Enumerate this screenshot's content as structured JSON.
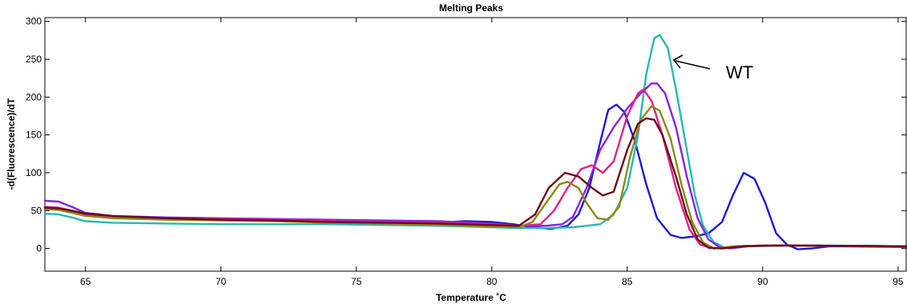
{
  "chart_data": {
    "type": "line",
    "title": "Melting Peaks",
    "xlabel": "Temperature ˚C",
    "ylabel": "-d(Fluorescence)/dT",
    "xlim": [
      63.5,
      95.3
    ],
    "ylim": [
      -30,
      305
    ],
    "xticks": [
      65,
      70,
      75,
      80,
      85,
      90,
      95
    ],
    "yticks": [
      0,
      50,
      100,
      150,
      200,
      250,
      300
    ],
    "grid": false,
    "annotations": [
      {
        "text": "WT",
        "points_to": {
          "x": 86.2,
          "y": 260
        }
      }
    ],
    "series": [
      {
        "color": "#1a1ad6",
        "points": [
          [
            63.5,
            53
          ],
          [
            64,
            52
          ],
          [
            64.5,
            48
          ],
          [
            65,
            44
          ],
          [
            66,
            42
          ],
          [
            68,
            40
          ],
          [
            70,
            38
          ],
          [
            72,
            37
          ],
          [
            74,
            36
          ],
          [
            76,
            35
          ],
          [
            78,
            34
          ],
          [
            79,
            36
          ],
          [
            80,
            35
          ],
          [
            80.8,
            32
          ],
          [
            81.5,
            28
          ],
          [
            82.2,
            26
          ],
          [
            82.8,
            30
          ],
          [
            83.2,
            45
          ],
          [
            83.6,
            80
          ],
          [
            84,
            140
          ],
          [
            84.3,
            183
          ],
          [
            84.6,
            190
          ],
          [
            84.9,
            180
          ],
          [
            85.3,
            140
          ],
          [
            85.7,
            85
          ],
          [
            86.1,
            40
          ],
          [
            86.6,
            18
          ],
          [
            87,
            14
          ],
          [
            87.5,
            16
          ],
          [
            88,
            20
          ],
          [
            88.5,
            35
          ],
          [
            88.9,
            70
          ],
          [
            89.3,
            100
          ],
          [
            89.7,
            92
          ],
          [
            90.1,
            60
          ],
          [
            90.5,
            20
          ],
          [
            90.9,
            5
          ],
          [
            91.3,
            -1
          ],
          [
            91.8,
            0
          ],
          [
            92.5,
            3
          ],
          [
            95.3,
            2
          ]
        ]
      },
      {
        "color": "#26b8b8",
        "points": [
          [
            63.5,
            46
          ],
          [
            64,
            45
          ],
          [
            64.5,
            41
          ],
          [
            65,
            36
          ],
          [
            66,
            34
          ],
          [
            68,
            33
          ],
          [
            70,
            32
          ],
          [
            72,
            32
          ],
          [
            74,
            32
          ],
          [
            76,
            31
          ],
          [
            78,
            30
          ],
          [
            80,
            28
          ],
          [
            81,
            27
          ],
          [
            82,
            27
          ],
          [
            83,
            28
          ],
          [
            84,
            32
          ],
          [
            84.5,
            45
          ],
          [
            85,
            80
          ],
          [
            85.4,
            150
          ],
          [
            85.7,
            230
          ],
          [
            86,
            278
          ],
          [
            86.2,
            282
          ],
          [
            86.5,
            265
          ],
          [
            86.8,
            210
          ],
          [
            87.2,
            130
          ],
          [
            87.5,
            70
          ],
          [
            87.8,
            30
          ],
          [
            88.2,
            8
          ],
          [
            88.6,
            1
          ],
          [
            89,
            2
          ],
          [
            90,
            4
          ],
          [
            92,
            4
          ],
          [
            95.3,
            3
          ]
        ]
      },
      {
        "color": "#8822dd",
        "points": [
          [
            63.5,
            63
          ],
          [
            64,
            62
          ],
          [
            64.5,
            55
          ],
          [
            65,
            47
          ],
          [
            66,
            43
          ],
          [
            68,
            41
          ],
          [
            70,
            40
          ],
          [
            72,
            39
          ],
          [
            74,
            38
          ],
          [
            76,
            37
          ],
          [
            78,
            36
          ],
          [
            80,
            33
          ],
          [
            81,
            30
          ],
          [
            82,
            30
          ],
          [
            82.6,
            32
          ],
          [
            83,
            42
          ],
          [
            83.5,
            80
          ],
          [
            84,
            130
          ],
          [
            84.5,
            160
          ],
          [
            85,
            185
          ],
          [
            85.5,
            205
          ],
          [
            85.9,
            218
          ],
          [
            86.1,
            218
          ],
          [
            86.4,
            205
          ],
          [
            86.8,
            160
          ],
          [
            87.2,
            95
          ],
          [
            87.6,
            40
          ],
          [
            88,
            12
          ],
          [
            88.4,
            2
          ],
          [
            88.8,
            0
          ],
          [
            89.5,
            3
          ],
          [
            91,
            4
          ],
          [
            95.3,
            3
          ]
        ]
      },
      {
        "color": "#e0208a",
        "points": [
          [
            63.5,
            55
          ],
          [
            64,
            54
          ],
          [
            64.5,
            50
          ],
          [
            65,
            45
          ],
          [
            66,
            42
          ],
          [
            68,
            40
          ],
          [
            70,
            39
          ],
          [
            72,
            38
          ],
          [
            74,
            36
          ],
          [
            76,
            35
          ],
          [
            78,
            34
          ],
          [
            80,
            32
          ],
          [
            81,
            30
          ],
          [
            81.8,
            32
          ],
          [
            82.3,
            50
          ],
          [
            82.8,
            80
          ],
          [
            83.3,
            105
          ],
          [
            83.7,
            110
          ],
          [
            84.1,
            100
          ],
          [
            84.5,
            115
          ],
          [
            85,
            175
          ],
          [
            85.4,
            205
          ],
          [
            85.6,
            210
          ],
          [
            85.9,
            195
          ],
          [
            86.3,
            150
          ],
          [
            86.8,
            80
          ],
          [
            87.3,
            25
          ],
          [
            87.7,
            5
          ],
          [
            88.2,
            0
          ],
          [
            89,
            3
          ],
          [
            90,
            4
          ],
          [
            95.3,
            3
          ]
        ]
      },
      {
        "color": "#8a8a16",
        "points": [
          [
            63.5,
            52
          ],
          [
            64,
            51
          ],
          [
            64.5,
            47
          ],
          [
            65,
            43
          ],
          [
            66,
            40
          ],
          [
            68,
            38
          ],
          [
            70,
            37
          ],
          [
            72,
            36
          ],
          [
            74,
            34
          ],
          [
            76,
            33
          ],
          [
            78,
            31
          ],
          [
            80,
            29
          ],
          [
            81,
            28
          ],
          [
            81.5,
            35
          ],
          [
            82,
            60
          ],
          [
            82.5,
            85
          ],
          [
            82.8,
            88
          ],
          [
            83.2,
            80
          ],
          [
            83.5,
            60
          ],
          [
            83.9,
            40
          ],
          [
            84.3,
            38
          ],
          [
            84.7,
            55
          ],
          [
            85.1,
            120
          ],
          [
            85.5,
            170
          ],
          [
            85.9,
            188
          ],
          [
            86.2,
            182
          ],
          [
            86.6,
            145
          ],
          [
            87,
            85
          ],
          [
            87.4,
            35
          ],
          [
            87.8,
            8
          ],
          [
            88.2,
            0
          ],
          [
            89,
            3
          ],
          [
            90,
            4
          ],
          [
            95.3,
            3
          ]
        ]
      },
      {
        "color": "#6b0a1a",
        "points": [
          [
            63.5,
            54
          ],
          [
            64,
            53
          ],
          [
            64.5,
            50
          ],
          [
            65,
            46
          ],
          [
            66,
            43
          ],
          [
            68,
            40
          ],
          [
            70,
            38
          ],
          [
            72,
            37
          ],
          [
            74,
            35
          ],
          [
            76,
            34
          ],
          [
            78,
            33
          ],
          [
            80,
            31
          ],
          [
            81,
            30
          ],
          [
            81.6,
            45
          ],
          [
            82.1,
            80
          ],
          [
            82.7,
            100
          ],
          [
            83.2,
            95
          ],
          [
            83.7,
            80
          ],
          [
            84.1,
            70
          ],
          [
            84.5,
            75
          ],
          [
            85,
            130
          ],
          [
            85.4,
            165
          ],
          [
            85.7,
            172
          ],
          [
            86,
            170
          ],
          [
            86.3,
            150
          ],
          [
            86.8,
            95
          ],
          [
            87.2,
            45
          ],
          [
            87.6,
            12
          ],
          [
            88,
            1
          ],
          [
            88.5,
            0
          ],
          [
            89.3,
            3
          ],
          [
            90.5,
            4
          ],
          [
            95.3,
            3
          ]
        ]
      }
    ]
  }
}
